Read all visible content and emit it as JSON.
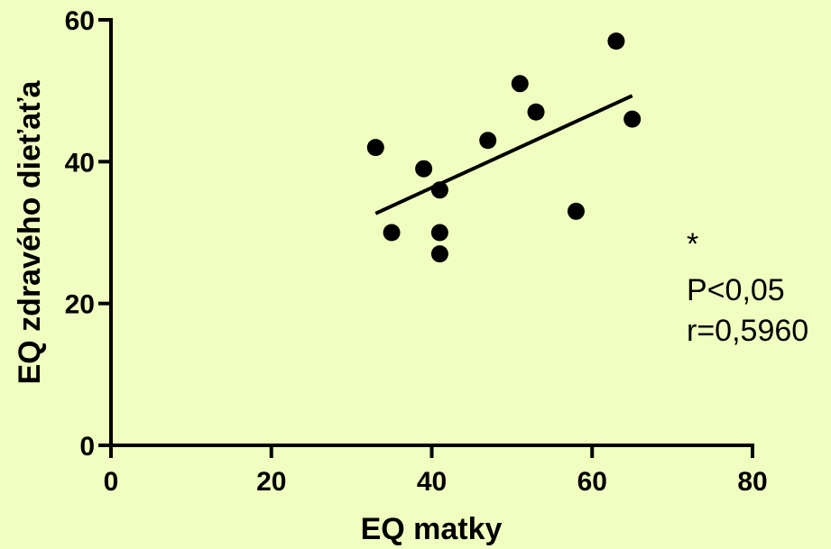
{
  "chart_data": {
    "type": "scatter",
    "xlabel": "EQ matky",
    "ylabel": "EQ zdravého dieťaťa",
    "xlim": [
      0,
      80
    ],
    "ylim": [
      0,
      60
    ],
    "x_ticks": [
      0,
      20,
      40,
      60,
      80
    ],
    "y_ticks": [
      0,
      20,
      40,
      60
    ],
    "grid": false,
    "points": [
      {
        "x": 33,
        "y": 42
      },
      {
        "x": 35,
        "y": 30
      },
      {
        "x": 39,
        "y": 39
      },
      {
        "x": 41,
        "y": 36
      },
      {
        "x": 41,
        "y": 30
      },
      {
        "x": 41,
        "y": 27
      },
      {
        "x": 47,
        "y": 43
      },
      {
        "x": 51,
        "y": 51
      },
      {
        "x": 53,
        "y": 47
      },
      {
        "x": 58,
        "y": 33
      },
      {
        "x": 63,
        "y": 57
      },
      {
        "x": 65,
        "y": 46
      }
    ],
    "regression_line": {
      "x": [
        33,
        65
      ],
      "y": [
        32.7,
        49.3
      ]
    },
    "annotations": [
      "*",
      "P<0,05",
      "r=0,5960"
    ]
  }
}
